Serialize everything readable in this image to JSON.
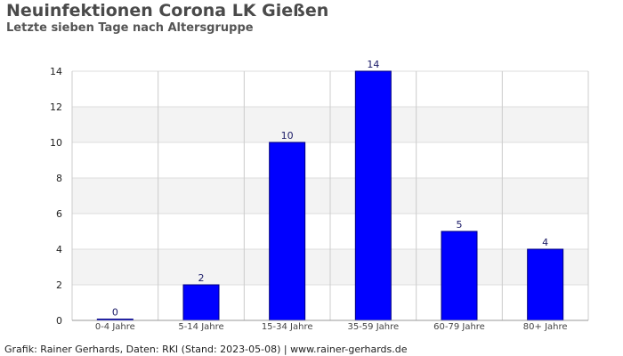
{
  "chart_data": {
    "type": "bar",
    "title": "Neuinfektionen Corona LK Gießen",
    "subtitle": "Letzte sieben Tage nach Altersgruppe",
    "categories": [
      "0-4 Jahre",
      "5-14 Jahre",
      "15-34 Jahre",
      "35-59 Jahre",
      "60-79 Jahre",
      "80+ Jahre"
    ],
    "values": [
      0,
      2,
      10,
      14,
      5,
      4
    ],
    "data_labels": [
      "0",
      "2",
      "10",
      "14",
      "5",
      "4"
    ],
    "y_ticks": [
      "0",
      "2",
      "4",
      "6",
      "8",
      "10",
      "12",
      "14"
    ],
    "ylim": [
      0,
      14
    ],
    "grid": true,
    "bar_color": "#0000ff",
    "bar_border_color": "#000080"
  },
  "footer": "Grafik: Rainer Gerhards, Daten: RKI (Stand: 2023-05-08) | www.rainer-gerhards.de"
}
